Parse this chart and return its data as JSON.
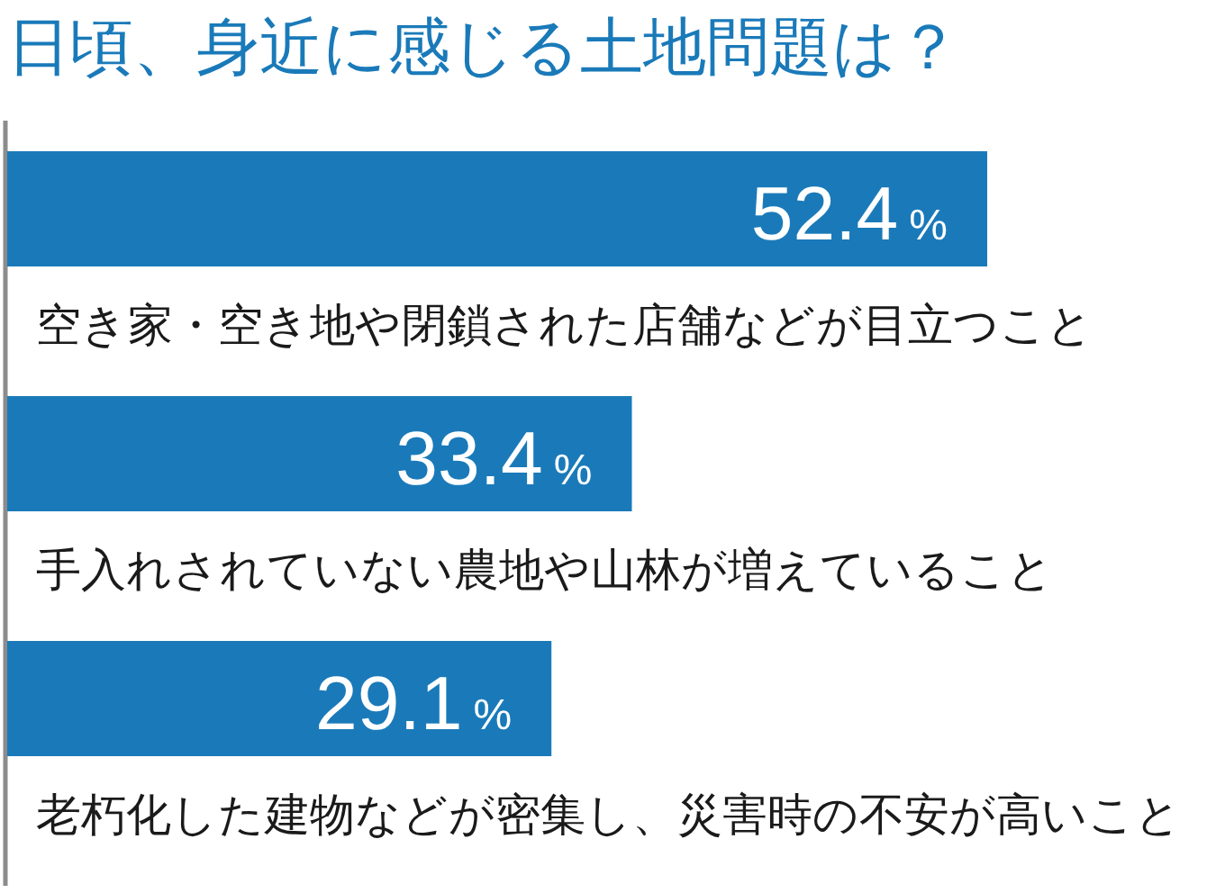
{
  "chart_data": {
    "type": "bar",
    "orientation": "horizontal",
    "title": "日頃、身近に感じる土地問題は？",
    "categories": [
      "空き家・空き地や閉鎖された店舗などが目立つこと",
      "手入れされていない農地や山林が増えていること",
      "老朽化した建物などが密集し、災害時の不安が高いこと"
    ],
    "values": [
      52.4,
      33.4,
      29.1
    ],
    "color": "#1a7ab9",
    "value_labels": [
      "52.4%",
      "33.4%",
      "29.1%"
    ]
  }
}
